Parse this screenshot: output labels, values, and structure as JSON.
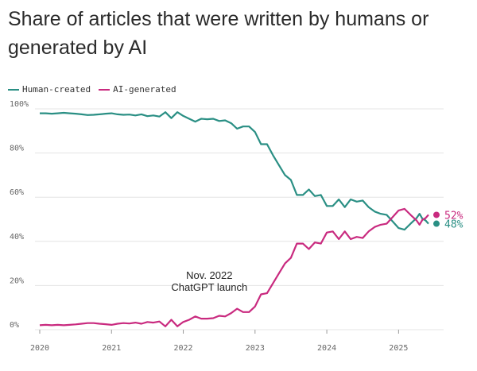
{
  "colors": {
    "human": "#2a8f84",
    "ai": "#c92a7f",
    "grid": "#e4e4e4"
  },
  "chart_data": {
    "type": "line",
    "title": "Share of articles that were written by humans or generated by AI",
    "xlabel": "",
    "ylabel": "",
    "ylim": [
      0,
      100
    ],
    "xlim": [
      2020,
      2025.45
    ],
    "yticks": [
      {
        "value": 0,
        "label": "0%"
      },
      {
        "value": 20,
        "label": "20%"
      },
      {
        "value": 40,
        "label": "40%"
      },
      {
        "value": 60,
        "label": "60%"
      },
      {
        "value": 80,
        "label": "80%"
      },
      {
        "value": 100,
        "label": "100%"
      }
    ],
    "xticks": [
      {
        "value": 2020,
        "label": "2020"
      },
      {
        "value": 2021,
        "label": "2021"
      },
      {
        "value": 2022,
        "label": "2022"
      },
      {
        "value": 2023,
        "label": "2023"
      },
      {
        "value": 2024,
        "label": "2024"
      },
      {
        "value": 2025,
        "label": "2025"
      }
    ],
    "legend": {
      "placement": "top-left"
    },
    "series": [
      {
        "name": "Human-created",
        "color_key": "human",
        "end_label": "48%",
        "points": [
          [
            2020.0,
            98
          ],
          [
            2020.083,
            98
          ],
          [
            2020.167,
            97.8
          ],
          [
            2020.25,
            98
          ],
          [
            2020.333,
            98.2
          ],
          [
            2020.417,
            98
          ],
          [
            2020.5,
            97.8
          ],
          [
            2020.583,
            97.5
          ],
          [
            2020.667,
            97.2
          ],
          [
            2020.75,
            97.3
          ],
          [
            2020.833,
            97.5
          ],
          [
            2020.917,
            97.8
          ],
          [
            2021.0,
            98
          ],
          [
            2021.083,
            97.5
          ],
          [
            2021.167,
            97.3
          ],
          [
            2021.25,
            97.4
          ],
          [
            2021.333,
            97
          ],
          [
            2021.417,
            97.5
          ],
          [
            2021.5,
            96.7
          ],
          [
            2021.583,
            97
          ],
          [
            2021.667,
            96.5
          ],
          [
            2021.75,
            98.5
          ],
          [
            2021.833,
            95.8
          ],
          [
            2021.917,
            98.5
          ],
          [
            2022.0,
            96.8
          ],
          [
            2022.083,
            95.5
          ],
          [
            2022.167,
            94.2
          ],
          [
            2022.25,
            95.5
          ],
          [
            2022.333,
            95.3
          ],
          [
            2022.417,
            95.5
          ],
          [
            2022.5,
            94.5
          ],
          [
            2022.583,
            94.8
          ],
          [
            2022.667,
            93.5
          ],
          [
            2022.75,
            91
          ],
          [
            2022.833,
            92
          ],
          [
            2022.917,
            92
          ],
          [
            2023.0,
            89.5
          ],
          [
            2023.083,
            84
          ],
          [
            2023.167,
            84
          ],
          [
            2023.25,
            79
          ],
          [
            2023.333,
            74.5
          ],
          [
            2023.417,
            70
          ],
          [
            2023.5,
            67.8
          ],
          [
            2023.583,
            61
          ],
          [
            2023.667,
            61
          ],
          [
            2023.75,
            63.5
          ],
          [
            2023.833,
            60.5
          ],
          [
            2023.917,
            61
          ],
          [
            2024.0,
            56
          ],
          [
            2024.083,
            56
          ],
          [
            2024.167,
            59
          ],
          [
            2024.25,
            55.5
          ],
          [
            2024.333,
            59
          ],
          [
            2024.417,
            58
          ],
          [
            2024.5,
            58.5
          ],
          [
            2024.583,
            55.5
          ],
          [
            2024.667,
            53.5
          ],
          [
            2024.75,
            52.5
          ],
          [
            2024.833,
            52
          ],
          [
            2024.917,
            49
          ],
          [
            2025.0,
            46
          ],
          [
            2025.083,
            45.3
          ],
          [
            2025.167,
            48
          ],
          [
            2025.25,
            50.5
          ],
          [
            2025.292,
            52.5
          ],
          [
            2025.333,
            50.2
          ],
          [
            2025.375,
            49.5
          ],
          [
            2025.417,
            48
          ]
        ]
      },
      {
        "name": "AI-generated",
        "color_key": "ai",
        "end_label": "52%",
        "points": [
          [
            2020.0,
            2
          ],
          [
            2020.083,
            2.2
          ],
          [
            2020.167,
            2.0
          ],
          [
            2020.25,
            2.2
          ],
          [
            2020.333,
            2.0
          ],
          [
            2020.417,
            2.2
          ],
          [
            2020.5,
            2.4
          ],
          [
            2020.583,
            2.7
          ],
          [
            2020.667,
            3.0
          ],
          [
            2020.75,
            3.0
          ],
          [
            2020.833,
            2.7
          ],
          [
            2020.917,
            2.5
          ],
          [
            2021.0,
            2.2
          ],
          [
            2021.083,
            2.7
          ],
          [
            2021.167,
            3.0
          ],
          [
            2021.25,
            2.8
          ],
          [
            2021.333,
            3.2
          ],
          [
            2021.417,
            2.7
          ],
          [
            2021.5,
            3.5
          ],
          [
            2021.583,
            3.2
          ],
          [
            2021.667,
            3.7
          ],
          [
            2021.75,
            1.5
          ],
          [
            2021.833,
            4.5
          ],
          [
            2021.917,
            1.5
          ],
          [
            2022.0,
            3.5
          ],
          [
            2022.083,
            4.5
          ],
          [
            2022.167,
            6.0
          ],
          [
            2022.25,
            5.0
          ],
          [
            2022.333,
            5.0
          ],
          [
            2022.417,
            5.2
          ],
          [
            2022.5,
            6.3
          ],
          [
            2022.583,
            6.0
          ],
          [
            2022.667,
            7.5
          ],
          [
            2022.75,
            9.5
          ],
          [
            2022.833,
            8.0
          ],
          [
            2022.917,
            8.0
          ],
          [
            2023.0,
            10.5
          ],
          [
            2023.083,
            16.0
          ],
          [
            2023.167,
            16.5
          ],
          [
            2023.25,
            21.0
          ],
          [
            2023.333,
            25.5
          ],
          [
            2023.417,
            30.0
          ],
          [
            2023.5,
            32.5
          ],
          [
            2023.583,
            39.0
          ],
          [
            2023.667,
            39.0
          ],
          [
            2023.75,
            36.5
          ],
          [
            2023.833,
            39.5
          ],
          [
            2023.917,
            39.0
          ],
          [
            2024.0,
            44.0
          ],
          [
            2024.083,
            44.5
          ],
          [
            2024.167,
            41.0
          ],
          [
            2024.25,
            44.5
          ],
          [
            2024.333,
            41.0
          ],
          [
            2024.417,
            42.0
          ],
          [
            2024.5,
            41.5
          ],
          [
            2024.583,
            44.5
          ],
          [
            2024.667,
            46.5
          ],
          [
            2024.75,
            47.5
          ],
          [
            2024.833,
            48.0
          ],
          [
            2024.917,
            51.0
          ],
          [
            2025.0,
            54.0
          ],
          [
            2025.083,
            54.7
          ],
          [
            2025.167,
            52.0
          ],
          [
            2025.25,
            49.5
          ],
          [
            2025.292,
            47.5
          ],
          [
            2025.333,
            49.8
          ],
          [
            2025.375,
            50.5
          ],
          [
            2025.417,
            52
          ]
        ]
      }
    ],
    "annotations": [
      {
        "x": 2022.917,
        "y": 18,
        "lines": [
          "Nov. 2022",
          "ChatGPT launch"
        ]
      }
    ]
  }
}
